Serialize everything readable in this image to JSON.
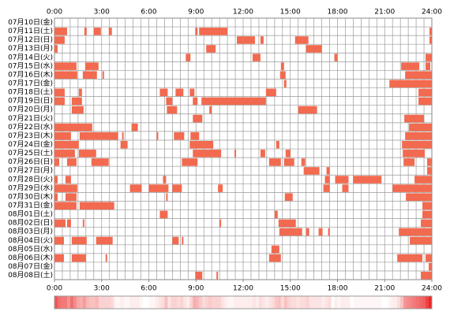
{
  "chart_data": {
    "type": "timeline",
    "categories": [
      "07月10日(金)",
      "07月11日(土)",
      "07月12日(日)",
      "07月13日(月)",
      "07月14日(火)",
      "07月15日(水)",
      "07月16日(木)",
      "07月17日(金)",
      "07月18日(土)",
      "07月19日(日)",
      "07月20日(月)",
      "07月21日(火)",
      "07月22日(水)",
      "07月23日(木)",
      "07月24日(金)",
      "07月25日(土)",
      "07月26日(日)",
      "07月27日(月)",
      "07月28日(火)",
      "07月29日(水)",
      "07月30日(木)",
      "07月31日(金)",
      "08月01日(土)",
      "08月02日(日)",
      "08月03日(月)",
      "08月04日(火)",
      "08月05日(水)",
      "08月06日(木)",
      "08月07日(金)",
      "08月08日(土)"
    ],
    "values": [
      [],
      [
        [
          0,
          0.8
        ],
        [
          1.9,
          2.05
        ],
        [
          2.5,
          2.95
        ],
        [
          3.45,
          3.65
        ],
        [
          8.95,
          9.1
        ],
        [
          9.2,
          11
        ],
        [
          23.85,
          24
        ]
      ],
      [
        [
          0,
          0.65
        ],
        [
          11.6,
          12.75
        ],
        [
          13.1,
          13.3
        ],
        [
          15.3,
          16.15
        ],
        [
          23.85,
          24
        ]
      ],
      [
        [
          0,
          0.2
        ],
        [
          9.65,
          10.25
        ],
        [
          16,
          17
        ]
      ],
      [
        [
          8.35,
          8.65
        ],
        [
          12.6,
          13.1
        ],
        [
          17.8,
          18
        ],
        [
          23.6,
          24
        ]
      ],
      [
        [
          0,
          1.4
        ],
        [
          1.95,
          2.8
        ],
        [
          14.4,
          14.6
        ],
        [
          22.05,
          23.2
        ],
        [
          23.6,
          23.9
        ]
      ],
      [
        [
          0,
          1.45
        ],
        [
          1.8,
          2.7
        ],
        [
          3.05,
          3.15
        ],
        [
          14.35,
          14.7
        ],
        [
          22.3,
          24
        ]
      ],
      [
        [
          14.6,
          14.75
        ],
        [
          21.3,
          24
        ]
      ],
      [
        [
          0,
          0.65
        ],
        [
          1.55,
          1.75
        ],
        [
          6.7,
          7.2
        ],
        [
          7.7,
          8.2
        ],
        [
          8.6,
          8.9
        ],
        [
          13.45,
          14.1
        ],
        [
          23.15,
          24
        ]
      ],
      [
        [
          0,
          0.65
        ],
        [
          1.1,
          1.75
        ],
        [
          7.1,
          7.5
        ],
        [
          8.8,
          9.1
        ],
        [
          9.35,
          13.45
        ],
        [
          23.15,
          24
        ]
      ],
      [
        [
          1.1,
          1.85
        ],
        [
          7.15,
          7.8
        ],
        [
          9.85,
          10
        ],
        [
          15.5,
          16.7
        ]
      ],
      [
        [
          8.8,
          9.4
        ],
        [
          22.25,
          23.5
        ]
      ],
      [
        [
          0,
          2.4
        ],
        [
          4.9,
          5.3
        ],
        [
          22.55,
          24
        ]
      ],
      [
        [
          0,
          1.05
        ],
        [
          1.6,
          4.05
        ],
        [
          4.3,
          4.4
        ],
        [
          6.5,
          6.6
        ],
        [
          7.6,
          8.25
        ],
        [
          8.65,
          9.2
        ],
        [
          22.3,
          24
        ]
      ],
      [
        [
          0,
          1.55
        ],
        [
          4.2,
          4.65
        ],
        [
          8.6,
          10.1
        ],
        [
          14.1,
          14.3
        ],
        [
          22.1,
          24
        ]
      ],
      [
        [
          0,
          1.3
        ],
        [
          1.55,
          2.65
        ],
        [
          8.8,
          10.6
        ],
        [
          11.45,
          11.55
        ],
        [
          13.1,
          13.4
        ],
        [
          14.7,
          15
        ],
        [
          22.15,
          23.55
        ]
      ],
      [
        [
          0,
          0.3
        ],
        [
          0.8,
          1.4
        ],
        [
          2.35,
          3.45
        ],
        [
          8.1,
          9.1
        ],
        [
          13.65,
          14.4
        ],
        [
          14.6,
          15.25
        ],
        [
          15.7,
          15.95
        ],
        [
          22.2,
          22.9
        ],
        [
          23.7,
          24
        ]
      ],
      [
        [
          15.85,
          16.85
        ],
        [
          17.3,
          17.5
        ],
        [
          23.7,
          24
        ]
      ],
      [
        [
          0,
          0.2
        ],
        [
          0.7,
          1.05
        ],
        [
          6.9,
          7.1
        ],
        [
          17.2,
          17.5
        ],
        [
          17.85,
          18.7
        ],
        [
          19,
          20.8
        ],
        [
          22.9,
          24
        ]
      ],
      [
        [
          0,
          1.45
        ],
        [
          4.8,
          5.55
        ],
        [
          6,
          7.25
        ],
        [
          7.5,
          8.1
        ],
        [
          10.4,
          10.7
        ],
        [
          17.1,
          17.5
        ],
        [
          18.3,
          18.7
        ],
        [
          21.5,
          24
        ]
      ],
      [
        [
          0,
          0.2
        ],
        [
          0.7,
          1.4
        ],
        [
          7.1,
          7.2
        ],
        [
          14.65,
          15.15
        ],
        [
          22.35,
          24
        ]
      ],
      [
        [
          0,
          1.4
        ],
        [
          1.6,
          3.8
        ],
        [
          23.4,
          24
        ]
      ],
      [
        [
          6.7,
          7.2
        ],
        [
          14,
          14.2
        ],
        [
          23.4,
          24
        ]
      ],
      [
        [
          0,
          0.7
        ],
        [
          0.8,
          1.05
        ],
        [
          1.8,
          1.9
        ],
        [
          10.5,
          10.6
        ],
        [
          14.25,
          15.35
        ],
        [
          23.3,
          24
        ]
      ],
      [
        [
          14.3,
          15.75
        ],
        [
          16,
          16.2
        ],
        [
          16.8,
          17.05
        ],
        [
          17.4,
          17.5
        ],
        [
          21.9,
          24
        ]
      ],
      [
        [
          0,
          0.6
        ],
        [
          1.1,
          2.05
        ],
        [
          2.65,
          3.7
        ],
        [
          7.5,
          7.9
        ],
        [
          8.1,
          8.2
        ],
        [
          22.6,
          24
        ]
      ],
      [
        [
          13.8,
          14.3
        ]
      ],
      [
        [
          0,
          0.6
        ],
        [
          1.1,
          2
        ],
        [
          3.25,
          3.35
        ],
        [
          13.65,
          14.4
        ],
        [
          21.8,
          23.4
        ],
        [
          23.6,
          24
        ]
      ],
      [
        [
          23.8,
          24
        ]
      ],
      [
        [
          8.95,
          9.4
        ],
        [
          10.3,
          10.4
        ],
        [
          23.3,
          24
        ]
      ]
    ],
    "color": "#f26a4f",
    "xlim": [
      0,
      24
    ],
    "xticks": [
      {
        "value": 0,
        "label": "0:00"
      },
      {
        "value": 3,
        "label": "3:00"
      },
      {
        "value": 6,
        "label": "6:00"
      },
      {
        "value": 9,
        "label": "9:00"
      },
      {
        "value": 12,
        "label": "12:00"
      },
      {
        "value": 15,
        "label": "15:00"
      },
      {
        "value": 18,
        "label": "18:00"
      },
      {
        "value": 21,
        "label": "21:00"
      },
      {
        "value": 24,
        "label": "24:00"
      }
    ],
    "grid": true
  }
}
